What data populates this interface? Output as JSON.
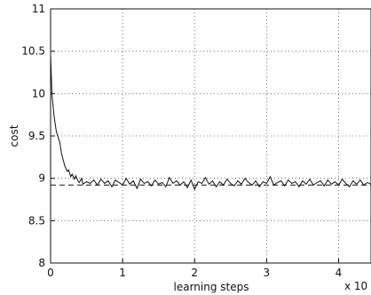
{
  "chart_data": {
    "type": "line",
    "xlabel": "learning steps",
    "ylabel": "cost",
    "x_multiplier_label": "x 10",
    "xlim": [
      0,
      4.45
    ],
    "ylim": [
      8,
      11
    ],
    "xticks": [
      0,
      1,
      2,
      3,
      4
    ],
    "xtick_labels": [
      "0",
      "1",
      "2",
      "3",
      "4"
    ],
    "yticks": [
      8,
      8.5,
      9,
      9.5,
      10,
      10.5,
      11
    ],
    "ytick_labels": [
      "8",
      "8.5",
      "9",
      "9.5",
      "10",
      "10.5",
      "11"
    ],
    "grid": "dotted",
    "series": [
      {
        "style": "solid",
        "x": [
          0,
          0.02,
          0.05,
          0.08,
          0.1,
          0.13,
          0.15,
          0.18,
          0.2,
          0.23,
          0.25,
          0.28,
          0.3,
          0.33,
          0.35,
          0.38,
          0.4,
          0.43,
          0.45,
          0.5,
          0.55,
          0.6,
          0.65,
          0.7,
          0.75,
          0.8,
          0.85,
          0.9,
          0.95,
          1.0,
          1.05,
          1.1,
          1.15,
          1.2,
          1.25,
          1.3,
          1.35,
          1.4,
          1.45,
          1.5,
          1.55,
          1.6,
          1.65,
          1.7,
          1.75,
          1.8,
          1.85,
          1.9,
          1.95,
          2.0,
          2.05,
          2.1,
          2.15,
          2.2,
          2.25,
          2.3,
          2.35,
          2.4,
          2.45,
          2.5,
          2.55,
          2.6,
          2.65,
          2.7,
          2.75,
          2.8,
          2.85,
          2.9,
          2.95,
          3.0,
          3.05,
          3.1,
          3.15,
          3.2,
          3.25,
          3.3,
          3.35,
          3.4,
          3.45,
          3.5,
          3.55,
          3.6,
          3.65,
          3.7,
          3.75,
          3.8,
          3.85,
          3.9,
          3.95,
          4.0,
          4.05,
          4.1,
          4.15,
          4.2,
          4.25,
          4.3,
          4.35,
          4.4,
          4.45
        ],
        "y": [
          10.45,
          9.98,
          9.72,
          9.55,
          9.5,
          9.42,
          9.3,
          9.2,
          9.14,
          9.08,
          9.1,
          9.02,
          9.05,
          8.99,
          9.03,
          8.97,
          8.95,
          9.0,
          8.93,
          8.96,
          8.94,
          8.98,
          8.92,
          8.99,
          8.94,
          8.97,
          8.9,
          8.98,
          8.95,
          8.92,
          9.0,
          8.93,
          8.97,
          8.88,
          8.99,
          8.94,
          8.96,
          8.91,
          8.98,
          8.93,
          8.95,
          8.9,
          9.01,
          8.94,
          8.97,
          8.92,
          8.96,
          8.89,
          8.98,
          8.87,
          8.96,
          8.94,
          9.01,
          8.93,
          8.97,
          8.9,
          8.96,
          8.92,
          8.99,
          8.94,
          8.91,
          8.97,
          8.93,
          9.0,
          8.95,
          8.92,
          8.97,
          8.9,
          8.96,
          8.94,
          9.02,
          8.92,
          8.95,
          8.97,
          8.91,
          8.98,
          8.94,
          8.96,
          8.9,
          8.97,
          8.93,
          8.99,
          8.92,
          8.95,
          8.97,
          8.91,
          8.98,
          8.93,
          8.96,
          8.92,
          8.99,
          8.94,
          8.9,
          8.97,
          8.93,
          8.98,
          8.92,
          8.95,
          8.93
        ]
      },
      {
        "style": "dashed",
        "x": [
          0,
          4.45
        ],
        "y": [
          8.92,
          8.92
        ]
      }
    ]
  }
}
